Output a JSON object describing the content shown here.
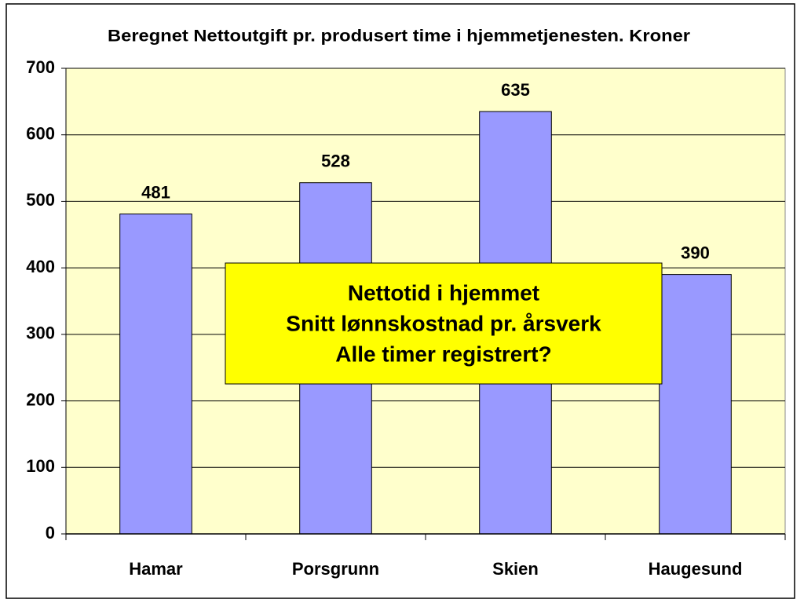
{
  "chart_data": {
    "type": "bar",
    "title": "Beregnet Nettoutgift pr. produsert time i hjemmetjenesten. Kroner",
    "categories": [
      "Hamar",
      "Porsgrunn",
      "Skien",
      "Haugesund"
    ],
    "values": [
      481,
      528,
      635,
      390
    ],
    "color": "#9999ff",
    "plot_background": "#ffffcc",
    "ylim": [
      0,
      700
    ],
    "yticks": [
      0,
      100,
      200,
      300,
      400,
      500,
      600,
      700
    ],
    "grid": true,
    "annotation": [
      "Nettotid i hjemmet",
      "Snitt lønnskostnad pr. årsverk",
      "Alle timer registrert?"
    ],
    "annotation_color": "#ffff00"
  }
}
